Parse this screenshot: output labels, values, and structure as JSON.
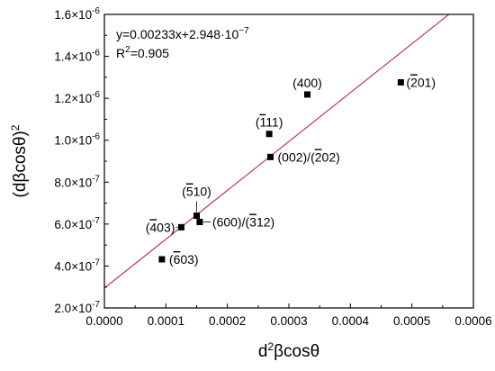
{
  "chart_data": {
    "type": "scatter",
    "xlabel_base": "d",
    "xlabel_sup": "2",
    "xlabel_rest": "βcosθ",
    "ylabel_main": "(dβcosθ)",
    "ylabel_sup": "2",
    "xlim": [
      0.0,
      0.0006
    ],
    "ylim": [
      2e-07,
      1.6e-06
    ],
    "x_ticks": [
      0.0,
      0.0001,
      0.0002,
      0.0003,
      0.0004,
      0.0005,
      0.0006
    ],
    "x_tick_labels": [
      "0.0000",
      "0.0001",
      "0.0002",
      "0.0003",
      "0.0004",
      "0.0005",
      "0.0006"
    ],
    "y_ticks": [
      2e-07,
      4e-07,
      6e-07,
      8e-07,
      1e-06,
      1.2e-06,
      1.4e-06,
      1.6e-06
    ],
    "y_tick_mantissas": [
      "2.0",
      "4.0",
      "6.0",
      "8.0",
      "1.0",
      "1.2",
      "1.4",
      "1.6"
    ],
    "y_tick_exponents": [
      "-7",
      "-7",
      "-7",
      "-7",
      "-6",
      "-6",
      "-6",
      "-6"
    ],
    "y_tick_times": "×10",
    "points": [
      {
        "x": 9.35e-05,
        "y": 4.32e-07,
        "label": [
          [
            "(",
            false
          ],
          [
            "6",
            true
          ],
          [
            "03)",
            false
          ]
        ]
      },
      {
        "x": 0.000125,
        "y": 5.85e-07,
        "label": [
          [
            "(",
            false
          ],
          [
            "4",
            true
          ],
          [
            "03)",
            false
          ]
        ]
      },
      {
        "x": 0.00015,
        "y": 6.4e-07,
        "label": [
          [
            "(",
            false
          ],
          [
            "5",
            true
          ],
          [
            "10)",
            false
          ]
        ]
      },
      {
        "x": 0.000155,
        "y": 6.1e-07,
        "label": [
          [
            "(600)/(",
            false
          ],
          [
            "3",
            true
          ],
          [
            "12)",
            false
          ]
        ]
      },
      {
        "x": 0.000268,
        "y": 1.03e-06,
        "label": [
          [
            "(",
            false
          ],
          [
            "1",
            true
          ],
          [
            "11)",
            false
          ]
        ]
      },
      {
        "x": 0.00027,
        "y": 9.2e-07,
        "label": [
          [
            "(002)/(",
            false
          ],
          [
            "2",
            true
          ],
          [
            "02)",
            false
          ]
        ]
      },
      {
        "x": 0.00033,
        "y": 1.218e-06,
        "label": [
          [
            "(400)",
            false
          ]
        ]
      },
      {
        "x": 0.000482,
        "y": 1.276e-06,
        "label": [
          [
            "(",
            false
          ],
          [
            "2",
            true
          ],
          [
            "01)",
            false
          ]
        ]
      }
    ],
    "fit": {
      "slope": 0.00233,
      "intercept": 2.948e-07,
      "equation_prefix": "y=0.00233x+2.948·10",
      "equation_exp": "−7",
      "r2_prefix": "R",
      "r2_sup": "2",
      "r2_value": "=0.905",
      "color": "#c0346a"
    },
    "grid": false,
    "legend": "none",
    "marker_color": "#000000"
  }
}
